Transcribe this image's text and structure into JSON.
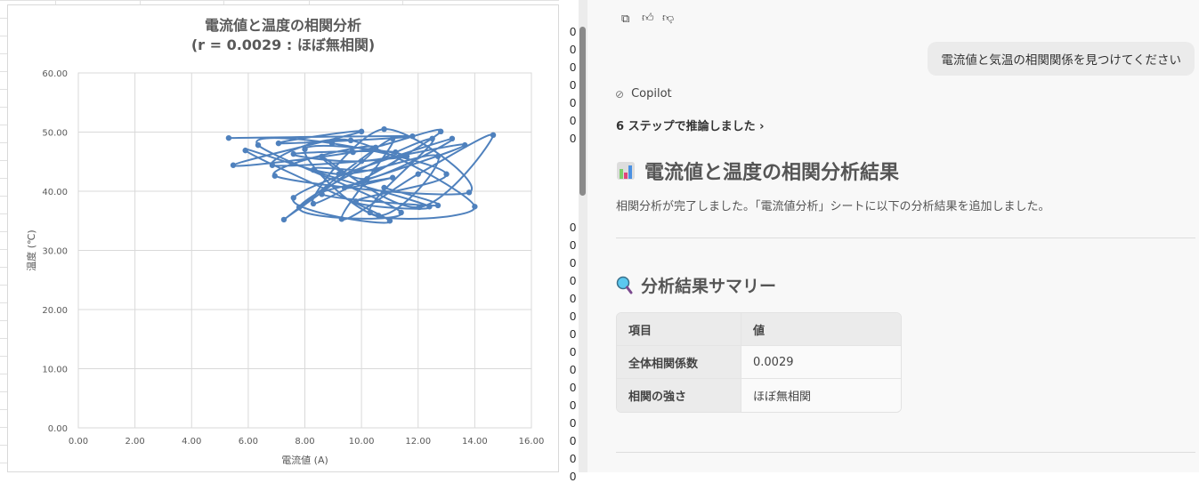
{
  "spreadsheet": {
    "cell_value": "0"
  },
  "chart_data": {
    "type": "scatter",
    "style": "smooth-lines-with-markers",
    "title": "電流値と温度の相関分析",
    "subtitle": "(r = 0.0029 : ほぼ無相関)",
    "xlabel": "電流値 (A)",
    "ylabel": "温度 (℃)",
    "xlim": [
      0,
      16
    ],
    "ylim": [
      0,
      60
    ],
    "xticks": [
      "0.00",
      "2.00",
      "4.00",
      "6.00",
      "8.00",
      "10.00",
      "12.00",
      "14.00",
      "16.00"
    ],
    "yticks": [
      "0.00",
      "10.00",
      "20.00",
      "30.00",
      "40.00",
      "50.00",
      "60.00"
    ],
    "grid": true,
    "legend": "none",
    "color": "#4f81bd",
    "x": [
      5.31,
      11.8,
      7.07,
      10.0,
      5.47,
      9.7,
      12.8,
      8.3,
      10.8,
      13.8,
      6.94,
      10.5,
      7.26,
      11.1,
      9.3,
      12.0,
      14.65,
      12.04,
      8.6,
      10.2,
      13.2,
      7.6,
      11.0,
      5.9,
      9.2,
      12.7,
      10.6,
      8.0,
      11.6,
      6.85,
      9.62,
      14.0,
      10.3,
      12.5,
      7.8,
      11.4,
      6.35,
      8.96,
      13.0,
      9.8,
      12.4,
      8.3,
      10.5,
      11.2,
      7.6,
      10.0,
      13.65,
      9.4,
      11.1,
      8.6,
      12.7,
      10.8
    ],
    "y": [
      49.0,
      49.3,
      48.1,
      50.1,
      44.4,
      46.6,
      50.1,
      37.9,
      50.5,
      39.8,
      42.6,
      47.4,
      35.2,
      48.9,
      35.3,
      42.9,
      49.5,
      37.3,
      45.9,
      42.1,
      48.9,
      38.9,
      35.0,
      46.9,
      42.9,
      45.9,
      35.9,
      47.1,
      45.9,
      44.4,
      48.6,
      37.4,
      36.4,
      48.9,
      37.3,
      36.4,
      47.8,
      48.1,
      42.9,
      38.3,
      37.4,
      43.6,
      43.6,
      46.6,
      46.3,
      45.1,
      47.8,
      40.6,
      42.3,
      39.5,
      37.6,
      40.6
    ]
  },
  "copilot": {
    "actions": {
      "copy": "copy-icon",
      "like": "thumbs-up-icon",
      "dislike": "thumbs-down-icon"
    },
    "user_message": "電流値と気温の相関関係を見つけてください",
    "assistant_name": "Copilot",
    "steps": "6 ステップで推論しました",
    "heading": "電流値と温度の相関分析結果",
    "description": "相関分析が完了しました。「電流値分析」シートに以下の分析結果を追加しました。",
    "summary_heading": "分析結果サマリー",
    "table": {
      "headers": [
        "項目",
        "値"
      ],
      "rows": [
        [
          "全体相関係数",
          "0.0029"
        ],
        [
          "相関の強さ",
          "ほぼ無相関"
        ]
      ]
    }
  }
}
